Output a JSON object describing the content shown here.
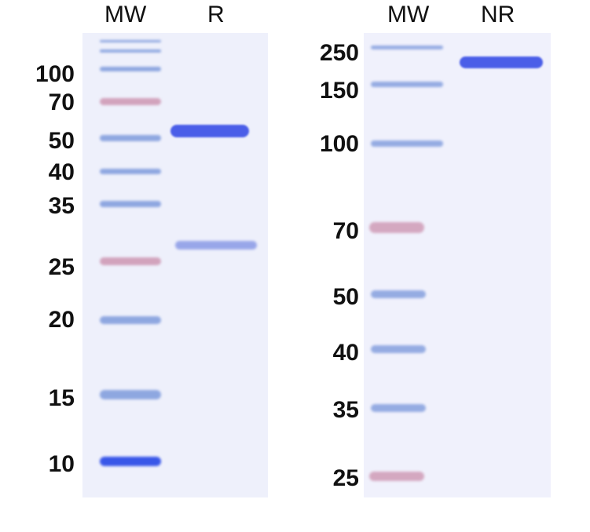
{
  "panels": [
    {
      "lanes": [
        {
          "label": "MW"
        },
        {
          "label": "R"
        }
      ],
      "markers": [
        "100",
        "70",
        "50",
        "40",
        "35",
        "25",
        "20",
        "15",
        "10"
      ]
    },
    {
      "lanes": [
        {
          "label": "MW"
        },
        {
          "label": "NR"
        }
      ],
      "markers": [
        "250",
        "150",
        "100",
        "70",
        "50",
        "40",
        "35",
        "25"
      ]
    }
  ],
  "colors": {
    "gel_background": "#eef0fb",
    "ladder_blue": "#6f8fd8",
    "ladder_pink": "#c98aa8",
    "sample_band": "#4a5ee8"
  }
}
